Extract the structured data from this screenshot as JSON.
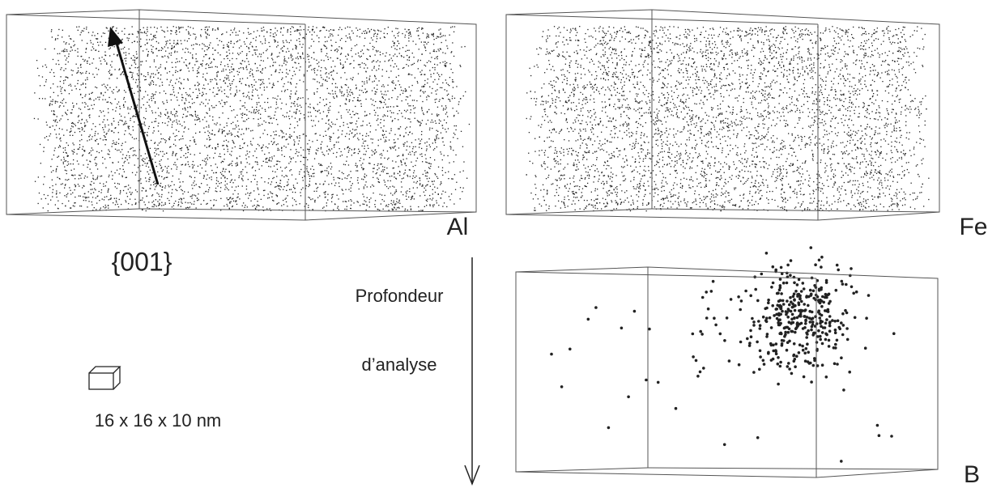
{
  "panels": {
    "al": {
      "label": "Al"
    },
    "fe": {
      "label": "Fe"
    },
    "b": {
      "label": "B"
    }
  },
  "orientation": "{001}",
  "depth_label": {
    "line1": "Profondeur",
    "line2": "d’analyse"
  },
  "scale": "16 x 16 x 10 nm"
}
